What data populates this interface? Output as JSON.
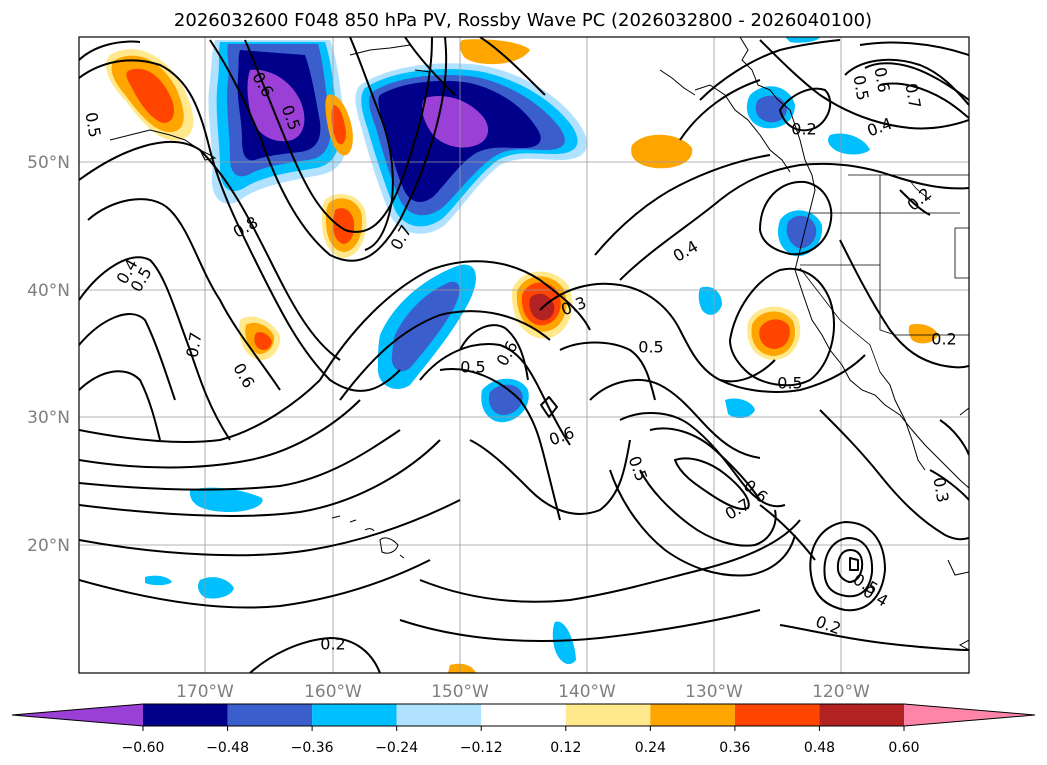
{
  "title": "2026032600 F048 850 hPa PV, Rossby Wave PC (2026032800 - 2026040100)",
  "lon_labels": [
    "170°W",
    "160°W",
    "150°W",
    "140°W",
    "130°W",
    "120°W"
  ],
  "lat_labels": [
    "50°N",
    "40°N",
    "30°N",
    "20°N"
  ],
  "colorbar": {
    "tick_labels": [
      "−0.60",
      "−0.48",
      "−0.36",
      "−0.24",
      "−0.12",
      "0.12",
      "0.24",
      "0.36",
      "0.48",
      "0.60"
    ],
    "colors": [
      "#9b40d6",
      "#00008b",
      "#3a5fcd",
      "#00bfff",
      "#b0e2ff",
      "#ffffff",
      "#ffe98c",
      "#ffa500",
      "#ff4500",
      "#b22222",
      "#ff85a8"
    ]
  },
  "contour_labels": [
    {
      "text": "0.5",
      "rot": 80
    },
    {
      "text": "0.6",
      "rot": 60
    },
    {
      "text": "0.5",
      "rot": 70
    },
    {
      "text": "0.8",
      "rot": -30
    },
    {
      "text": "0.7",
      "rot": -60
    },
    {
      "text": "0.4",
      "rot": -60
    },
    {
      "text": "0.5",
      "rot": -60
    },
    {
      "text": "0.7",
      "rot": -80
    },
    {
      "text": "0.6",
      "rot": 60
    },
    {
      "text": "0.5",
      "rot": 0
    },
    {
      "text": "0.6",
      "rot": -60
    },
    {
      "text": "0.3",
      "rot": -20
    },
    {
      "text": "0.6",
      "rot": -20
    },
    {
      "text": "0.4",
      "rot": -30
    },
    {
      "text": "0.5",
      "rot": 0
    },
    {
      "text": "0.5",
      "rot": 0
    },
    {
      "text": "0.5",
      "rot": 70
    },
    {
      "text": "0.6",
      "rot": 40
    },
    {
      "text": "0.7",
      "rot": -30
    },
    {
      "text": "0.2",
      "rot": 0
    },
    {
      "text": "0.6",
      "rot": 80
    },
    {
      "text": "0.5",
      "rot": 80
    },
    {
      "text": "0.7",
      "rot": 80
    },
    {
      "text": "0.4",
      "rot": -20
    },
    {
      "text": "0.2",
      "rot": -40
    },
    {
      "text": "0.2",
      "rot": 0
    },
    {
      "text": "0.5",
      "rot": 30
    },
    {
      "text": "0.4",
      "rot": 30
    },
    {
      "text": "0.2",
      "rot": 20
    },
    {
      "text": "0.2",
      "rot": 0
    },
    {
      "text": "0.3",
      "rot": 80
    }
  ]
}
